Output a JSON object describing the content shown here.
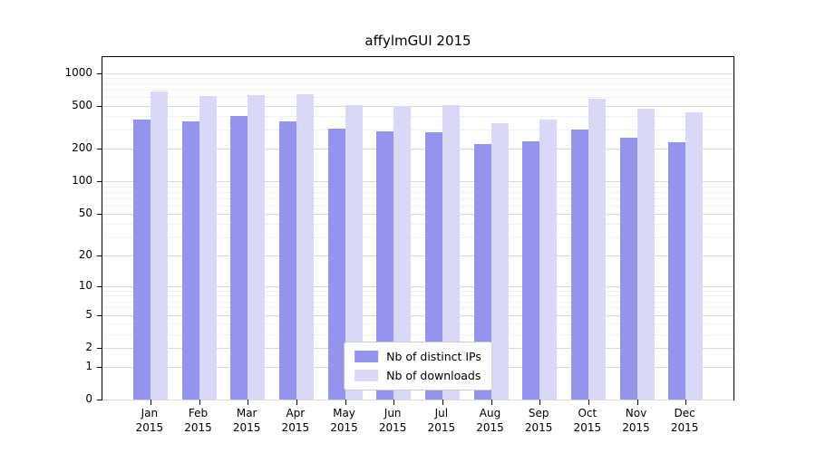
{
  "chart_data": {
    "type": "bar",
    "title": "affylmGUI 2015",
    "categories": [
      "Jan",
      "Feb",
      "Mar",
      "Apr",
      "May",
      "Jun",
      "Jul",
      "Aug",
      "Sep",
      "Oct",
      "Nov",
      "Dec"
    ],
    "year_label": "2015",
    "series": [
      {
        "name": "Nb of distinct IPs",
        "color": "#9494ef",
        "values": [
          370,
          355,
          400,
          355,
          305,
          290,
          285,
          220,
          235,
          300,
          255,
          230
        ]
      },
      {
        "name": "Nb of downloads",
        "color": "#d9d9f7",
        "values": [
          670,
          615,
          625,
          635,
          510,
          500,
          510,
          345,
          375,
          575,
          470,
          435
        ]
      }
    ],
    "yscale": "log1p",
    "ylim": [
      0,
      1400
    ],
    "yticks": [
      1000,
      500,
      200,
      100,
      50,
      20,
      10,
      5,
      2,
      1,
      0
    ],
    "minor_yticks": [
      3,
      4,
      6,
      7,
      8,
      9,
      30,
      40,
      60,
      70,
      80,
      90,
      300,
      400,
      600,
      700,
      800,
      900
    ],
    "grid": true,
    "legend_position": "lower center",
    "xlabel": "",
    "ylabel": ""
  }
}
